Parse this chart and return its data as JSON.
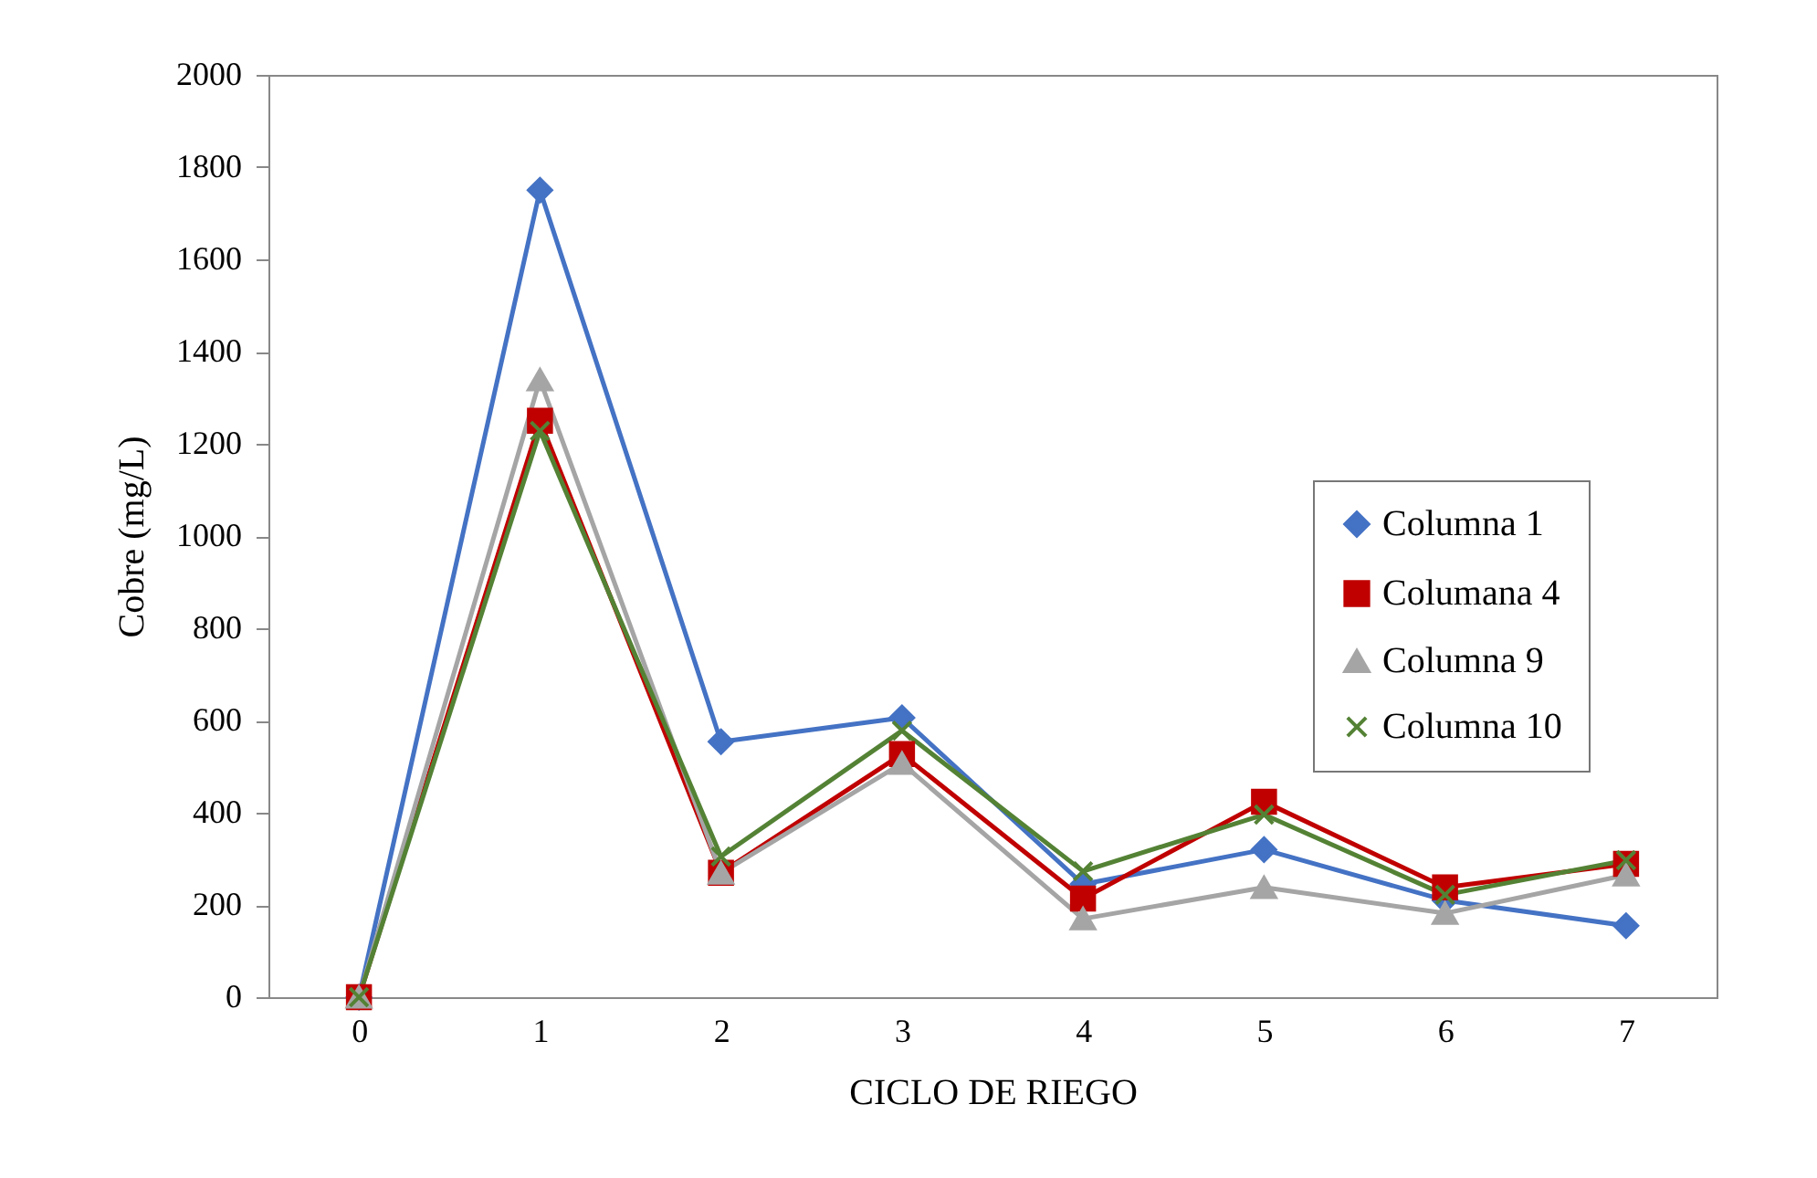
{
  "chart_data": {
    "type": "line",
    "xlabel": "CICLO DE RIEGO",
    "ylabel": "Cobre (mg/L)",
    "categories": [
      "0",
      "1",
      "2",
      "3",
      "4",
      "5",
      "6",
      "7"
    ],
    "series": [
      {
        "name": "Columna 1",
        "color": "#4472c4",
        "marker": "diamond",
        "values": [
          0,
          1750,
          554,
          606,
          245,
          320,
          210,
          155
        ]
      },
      {
        "name": "Columana 4",
        "color": "#c00000",
        "marker": "square",
        "values": [
          0,
          1250,
          270,
          527,
          214,
          424,
          238,
          289
        ]
      },
      {
        "name": "Columna 9",
        "color": "#a5a5a5",
        "marker": "triangle",
        "values": [
          0,
          1339,
          269,
          507,
          170,
          238,
          182,
          265
        ]
      },
      {
        "name": "Columna 10",
        "color": "#548235",
        "marker": "cross",
        "values": [
          0,
          1228,
          305,
          578,
          273,
          396,
          222,
          297
        ]
      }
    ],
    "ylim": [
      0,
      2000
    ],
    "yticks": [
      0,
      200,
      400,
      600,
      800,
      1000,
      1200,
      1400,
      1600,
      1800,
      2000
    ],
    "grid": false,
    "legend": "right",
    "line_style": "solid"
  }
}
